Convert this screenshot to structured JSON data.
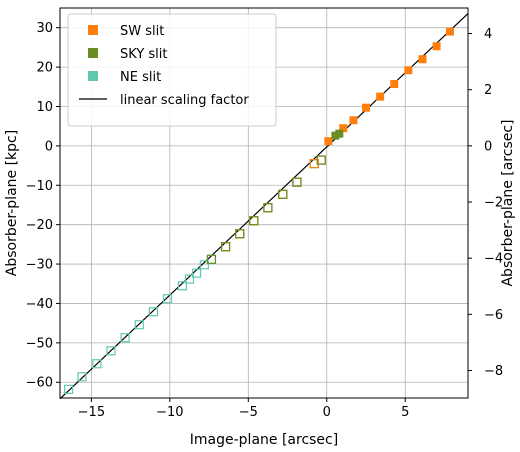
{
  "chart_data": {
    "type": "scatter",
    "xlabel": "Image-plane  [arcsec]",
    "ylabel": "Absorber-plane  [kpc]",
    "y2label": "Absorber-plane  [arcsec]",
    "xlim": [
      -17.0,
      9.0
    ],
    "ylim": [
      -64.0,
      35.0
    ],
    "y2lim": [
      -8.98,
      4.91
    ],
    "xticks": [
      -15,
      -10,
      -5,
      0,
      5
    ],
    "yticks": [
      -60,
      -50,
      -40,
      -30,
      -20,
      -10,
      0,
      10,
      20,
      30
    ],
    "y2ticks": [
      -8,
      -6,
      -4,
      -2,
      0,
      2,
      4
    ],
    "grid": true,
    "legend_position": "top-left",
    "line": {
      "name": "linear scaling factor",
      "color": "#000000",
      "x": [
        -17.0,
        9.0
      ],
      "y": [
        -64.2,
        33.6
      ]
    },
    "series": [
      {
        "name": "SW slit",
        "color": "#ff7f0e",
        "style": "filled",
        "x": [
          0.1,
          1.05,
          1.7,
          2.5,
          3.4,
          4.3,
          5.2,
          6.1,
          7.0,
          7.85
        ],
        "y": [
          1.2,
          4.5,
          6.5,
          9.7,
          12.5,
          15.7,
          19.2,
          22.0,
          25.3,
          29.0
        ]
      },
      {
        "name": "SKY slit",
        "color": "#6b8e23",
        "style": "filled",
        "x": [
          0.55,
          0.8
        ],
        "y": [
          2.6,
          3.1
        ]
      },
      {
        "name": "NE slit",
        "color": "#5fc7b0",
        "style": "open",
        "x": [
          -0.35,
          -0.8,
          -1.9,
          -2.8,
          -3.75,
          -4.65,
          -5.55,
          -6.45,
          -7.35,
          -7.8,
          -8.3,
          -8.75,
          -9.2,
          -10.15,
          -11.05,
          -11.95,
          -12.85,
          -13.75,
          -14.65,
          -15.6,
          -16.45
        ],
        "y": [
          -3.6,
          -4.5,
          -9.2,
          -12.3,
          -15.7,
          -19.0,
          -22.3,
          -25.6,
          -28.8,
          -30.2,
          -32.3,
          -33.8,
          -35.5,
          -38.8,
          -42.1,
          -45.4,
          -48.7,
          -52.0,
          -55.3,
          -58.6,
          -61.8
        ]
      },
      {
        "name": "SW slit",
        "color": "#ff7f0e",
        "style": "open",
        "x": [
          -0.35,
          -0.8,
          -1.9,
          -2.8,
          -3.75,
          -4.65,
          -5.55,
          -6.45
        ],
        "y": [
          -3.6,
          -4.5,
          -9.2,
          -12.3,
          -15.7,
          -19.0,
          -22.3,
          -25.6
        ]
      },
      {
        "name": "SKY slit",
        "color": "#6b8e23",
        "style": "open",
        "x": [
          -0.35,
          -1.9,
          -2.8,
          -3.75,
          -4.65,
          -5.55,
          -6.45,
          -7.35
        ],
        "y": [
          -3.6,
          -9.2,
          -12.3,
          -15.7,
          -19.0,
          -22.3,
          -25.6,
          -28.8
        ]
      }
    ],
    "legend": [
      {
        "name": "SW slit",
        "color": "#ff7f0e",
        "kind": "square"
      },
      {
        "name": "SKY slit",
        "color": "#6b8e23",
        "kind": "square"
      },
      {
        "name": "NE slit",
        "color": "#5fc7b0",
        "kind": "square"
      },
      {
        "name": "linear scaling factor",
        "color": "#000000",
        "kind": "line"
      }
    ]
  }
}
